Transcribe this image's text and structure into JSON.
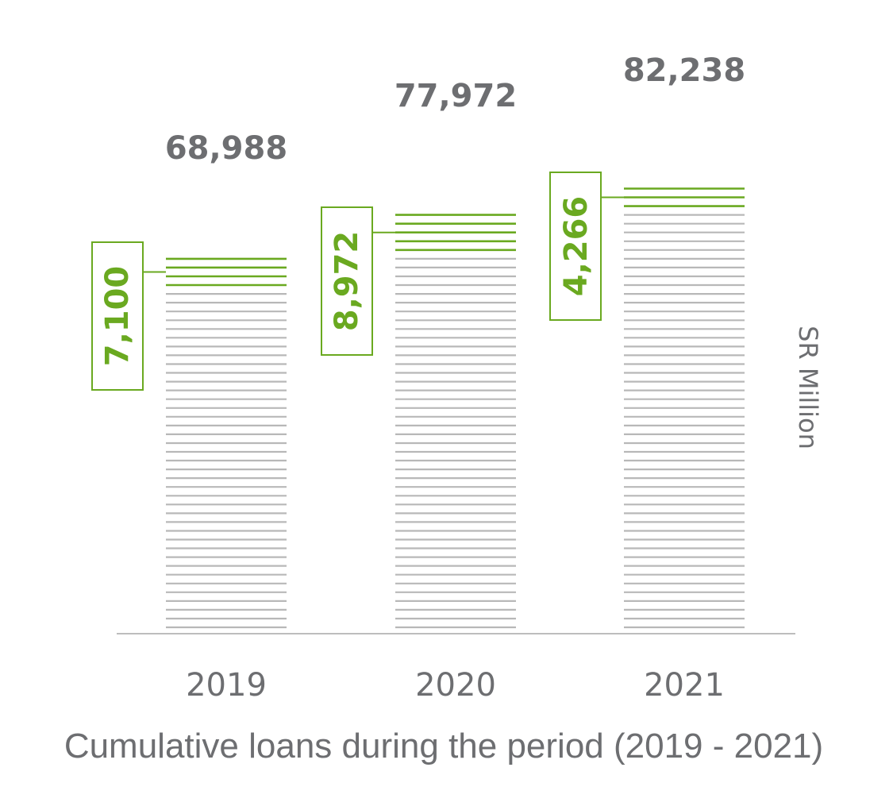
{
  "chart_data": {
    "type": "bar",
    "title": "Cumulative loans during the period (2019 - 2021)",
    "ylabel": "SR Million",
    "xlabel": "",
    "categories": [
      "2019",
      "2020",
      "2021"
    ],
    "series": [
      {
        "values": [
          61888,
          69000,
          77972
        ]
      },
      {
        "values": [
          7100,
          8972,
          4266
        ]
      }
    ],
    "totals": [
      "68,988",
      "77,972",
      "82,238"
    ],
    "additions": [
      "7,100",
      "8,972",
      "4,266"
    ],
    "grid": false,
    "colors": {
      "base": "#b8b8b8",
      "addition": "#6aa920",
      "text": "#6d6e71",
      "axis": "#bdbdbd"
    }
  }
}
